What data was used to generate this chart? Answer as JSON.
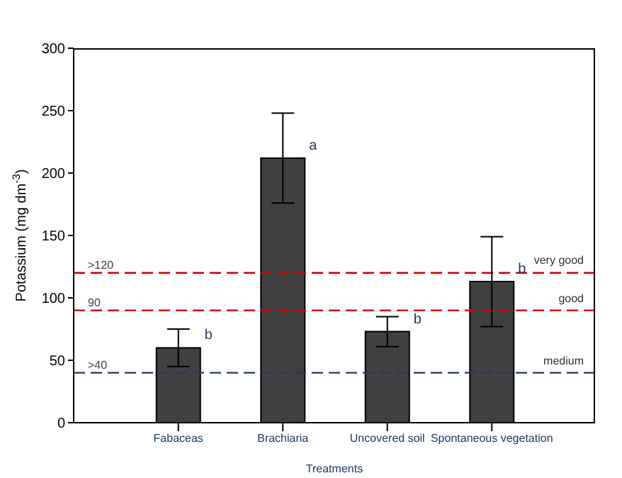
{
  "chart_data": {
    "type": "bar",
    "xlabel": "Treatments",
    "ylabel": "Potassium (mg dm$^{-3}$)",
    "categories": [
      "Fabaceas",
      "Brachiaria",
      "Uncovered soil",
      "Spontaneous vegetation"
    ],
    "values": [
      60,
      212,
      73,
      113
    ],
    "errors": [
      15,
      36,
      12,
      36
    ],
    "value_labels": [
      "b",
      "a",
      "b",
      "b"
    ],
    "color": "#404040",
    "ylim": [
      0,
      300
    ],
    "yticks": [
      0,
      50,
      100,
      150,
      200,
      250,
      300
    ],
    "ref_lines": [
      {
        "axis": "y",
        "value": 120,
        "label": ">120",
        "color": "#cc0000",
        "line_style": "dashed"
      },
      {
        "axis": "y",
        "value": 90,
        "label": "90",
        "color": "#cc0000",
        "line_style": "dashed"
      },
      {
        "axis": "y",
        "value": 40,
        "label": ">40",
        "color": "#1f3864",
        "line_style": "dashed"
      }
    ],
    "annotations": [
      {
        "text": "very good",
        "y": 120
      },
      {
        "text": "good",
        "y": 90
      },
      {
        "text": "medium",
        "y": 40
      }
    ],
    "grid": false,
    "legend": false
  }
}
